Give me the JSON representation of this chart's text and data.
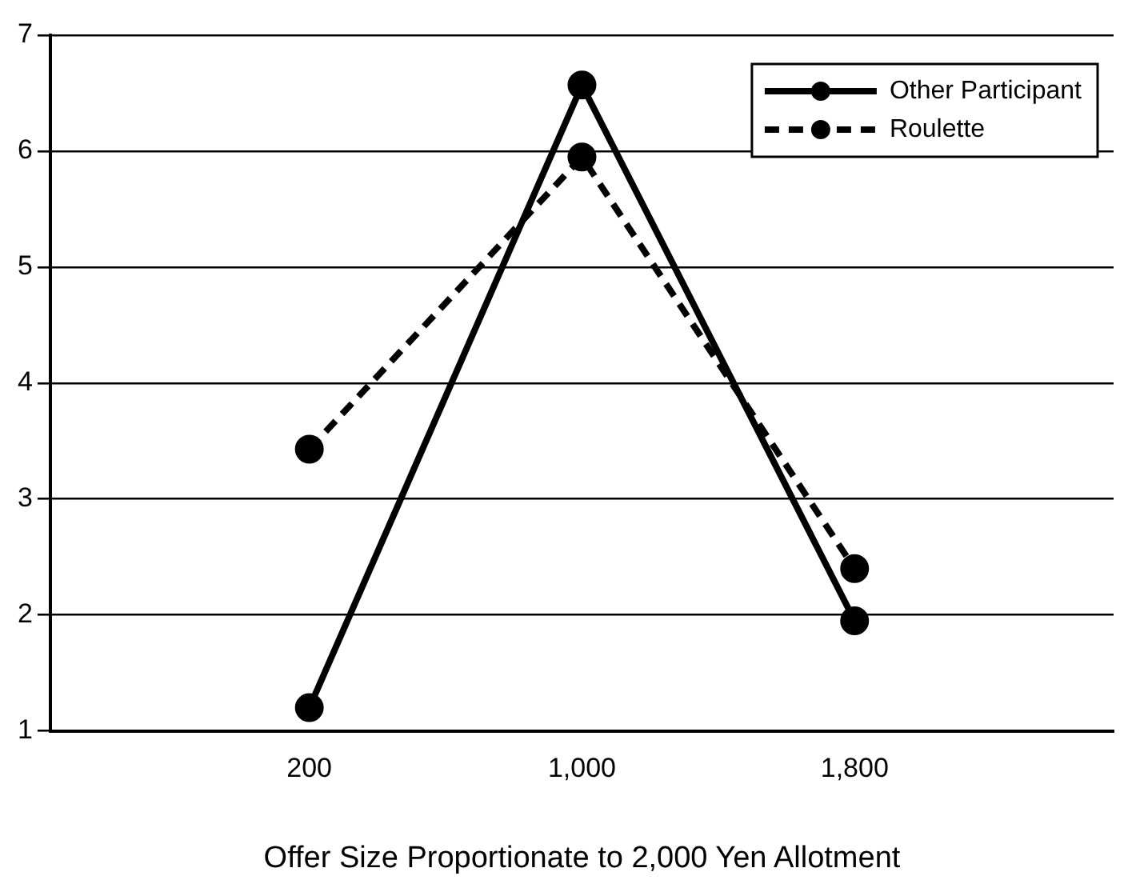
{
  "chart_data": {
    "type": "line",
    "xlabel": "Offer Size Proportionate to 2,000 Yen Allotment",
    "x": [
      200,
      1000,
      1800
    ],
    "xlim": [
      -560,
      2560
    ],
    "xticks": [
      200,
      {
        "value": 1000,
        "label": "1,000"
      },
      {
        "value": 1800,
        "label": "1,800"
      }
    ],
    "ylim": [
      1,
      7
    ],
    "yticks": [
      1,
      2,
      3,
      4,
      5,
      6,
      7
    ],
    "grid": "y",
    "legend": "top right",
    "marker": "circle",
    "series": [
      {
        "name": "Other Participant",
        "color": "#000000",
        "values": [
          1.2,
          6.57,
          1.95
        ],
        "line_style": "solid"
      },
      {
        "name": "Roulette",
        "color": "#000000",
        "values": [
          3.43,
          5.95,
          2.4
        ],
        "line_style": "dashed"
      }
    ]
  }
}
